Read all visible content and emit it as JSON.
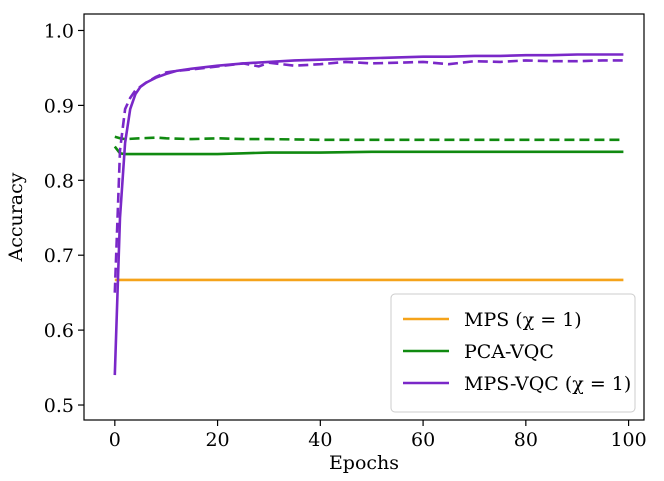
{
  "chart_data": {
    "type": "line",
    "title": "",
    "xlabel": "Epochs",
    "ylabel": "Accuracy",
    "xlim": [
      -6,
      103
    ],
    "ylim": [
      0.48,
      1.022
    ],
    "xticks": [
      0,
      20,
      40,
      60,
      80,
      100
    ],
    "xtick_labels": [
      "0",
      "20",
      "40",
      "60",
      "80",
      "100"
    ],
    "yticks": [
      0.5,
      0.6,
      0.7,
      0.8,
      0.9,
      1.0
    ],
    "ytick_labels": [
      "0.5",
      "0.6",
      "0.7",
      "0.8",
      "0.9",
      "1.0"
    ],
    "grid": false,
    "legend_position": "lower-right",
    "legend": [
      {
        "label": "MPS (χ = 1)",
        "color": "#f5a31a"
      },
      {
        "label": "PCA-VQC",
        "color": "#108a10"
      },
      {
        "label": "MPS-VQC (χ = 1)",
        "color": "#7a28c8"
      }
    ],
    "series": [
      {
        "name": "MPS (χ = 1) train",
        "color": "#f5a31a",
        "style": "solid",
        "x": [
          0,
          1,
          99
        ],
        "y": [
          0.667,
          0.667,
          0.667
        ]
      },
      {
        "name": "PCA-VQC train",
        "color": "#108a10",
        "style": "solid",
        "x": [
          0,
          1,
          2,
          5,
          10,
          15,
          20,
          25,
          30,
          40,
          50,
          60,
          70,
          80,
          90,
          99
        ],
        "y": [
          0.845,
          0.836,
          0.835,
          0.835,
          0.835,
          0.835,
          0.835,
          0.836,
          0.837,
          0.837,
          0.838,
          0.838,
          0.838,
          0.838,
          0.838,
          0.838
        ]
      },
      {
        "name": "PCA-VQC test",
        "color": "#108a10",
        "style": "dashed",
        "x": [
          0,
          1,
          2,
          5,
          8,
          10,
          15,
          20,
          25,
          30,
          40,
          50,
          60,
          70,
          80,
          90,
          99
        ],
        "y": [
          0.858,
          0.856,
          0.855,
          0.856,
          0.857,
          0.856,
          0.855,
          0.856,
          0.855,
          0.855,
          0.854,
          0.854,
          0.854,
          0.854,
          0.854,
          0.854,
          0.854
        ]
      },
      {
        "name": "MPS-VQC (χ = 1) train",
        "color": "#7a28c8",
        "style": "solid",
        "x": [
          0,
          1,
          2,
          3,
          4,
          5,
          6,
          8,
          10,
          12,
          15,
          20,
          25,
          30,
          35,
          40,
          45,
          50,
          55,
          60,
          65,
          70,
          75,
          80,
          85,
          90,
          95,
          99
        ],
        "y": [
          0.54,
          0.75,
          0.85,
          0.895,
          0.915,
          0.925,
          0.93,
          0.937,
          0.942,
          0.946,
          0.949,
          0.953,
          0.956,
          0.958,
          0.96,
          0.961,
          0.962,
          0.963,
          0.964,
          0.965,
          0.965,
          0.966,
          0.966,
          0.967,
          0.967,
          0.968,
          0.968,
          0.968
        ]
      },
      {
        "name": "MPS-VQC (χ = 1) test",
        "color": "#7a28c8",
        "style": "dashed",
        "x": [
          0,
          1,
          2,
          3,
          4,
          5,
          6,
          8,
          10,
          12,
          15,
          20,
          25,
          28,
          30,
          35,
          40,
          45,
          50,
          55,
          60,
          65,
          70,
          75,
          80,
          85,
          90,
          95,
          99
        ],
        "y": [
          0.65,
          0.84,
          0.895,
          0.91,
          0.92,
          0.925,
          0.93,
          0.938,
          0.944,
          0.946,
          0.948,
          0.952,
          0.956,
          0.952,
          0.957,
          0.953,
          0.955,
          0.958,
          0.956,
          0.957,
          0.958,
          0.955,
          0.959,
          0.958,
          0.96,
          0.959,
          0.959,
          0.96,
          0.96
        ]
      }
    ]
  }
}
